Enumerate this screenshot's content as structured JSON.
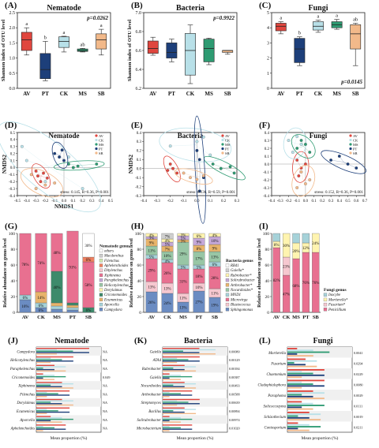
{
  "colors": {
    "AV": "#e0463e",
    "PT": "#1d3f7a",
    "CK": "#b8e0e8",
    "MS": "#2e9b72",
    "SB": "#f2b98a",
    "grid": "#bbbbbb"
  },
  "chart_data": [
    {
      "id": "A",
      "type": "box",
      "panel_label": "(A)",
      "title": "Nematode",
      "ylabel": "Shannon index of OTU level",
      "ylim": [
        0,
        2.5
      ],
      "yticks": [
        "0.0",
        "0.5",
        "1.0",
        "1.5",
        "2.0",
        "2.5"
      ],
      "categories": [
        "AV",
        "PT",
        "CK",
        "MS",
        "SB"
      ],
      "pvalue": "p=0.0262",
      "letters": [
        "a",
        "b",
        "a",
        "ab",
        "a"
      ],
      "boxes": [
        {
          "min": 1.1,
          "q1": 1.25,
          "med": 1.6,
          "q3": 1.85,
          "max": 2.0
        },
        {
          "min": 0.25,
          "q1": 0.32,
          "med": 0.62,
          "q3": 1.15,
          "max": 1.55
        },
        {
          "min": 1.2,
          "q1": 1.35,
          "med": 1.55,
          "q3": 1.7,
          "max": 1.72
        },
        {
          "min": 1.2,
          "q1": 1.22,
          "med": 1.25,
          "q3": 1.3,
          "max": 1.32
        },
        {
          "min": 1.1,
          "q1": 1.3,
          "med": 1.6,
          "q3": 1.8,
          "max": 1.95
        }
      ]
    },
    {
      "id": "B",
      "type": "box",
      "panel_label": "(B)",
      "title": "Bacteria",
      "ylabel": "Shannon index of OTU level",
      "ylim": [
        6.2,
        7.0
      ],
      "yticks": [
        "6.2",
        "6.4",
        "6.6",
        "6.8",
        "7.0"
      ],
      "categories": [
        "AV",
        "PT",
        "CK",
        "MS",
        "SB"
      ],
      "pvalue": "p=0.9922",
      "letters": [],
      "boxes": [
        {
          "min": 6.55,
          "q1": 6.57,
          "med": 6.62,
          "q3": 6.7,
          "max": 6.74
        },
        {
          "min": 6.48,
          "q1": 6.52,
          "med": 6.58,
          "q3": 6.68,
          "max": 6.72
        },
        {
          "min": 6.25,
          "q1": 6.34,
          "med": 6.6,
          "q3": 6.78,
          "max": 6.87
        },
        {
          "min": 6.45,
          "q1": 6.48,
          "med": 6.62,
          "q3": 6.72,
          "max": 6.73
        },
        {
          "min": 6.56,
          "q1": 6.58,
          "med": 6.6,
          "q3": 6.6,
          "max": 6.6
        }
      ]
    },
    {
      "id": "C",
      "type": "box",
      "panel_label": "(C)",
      "title": "Fungi",
      "ylabel": "",
      "ylim": [
        0,
        5
      ],
      "yticks": [
        "0",
        "1",
        "2",
        "3",
        "4",
        "5"
      ],
      "categories": [
        "AV",
        "PT",
        "CK",
        "MS",
        "SB"
      ],
      "pvalue": "p=0.0145",
      "letters": [
        "a",
        "b",
        "a",
        "a",
        "ab"
      ],
      "boxes": [
        {
          "min": 3.6,
          "q1": 3.8,
          "med": 4.1,
          "q3": 4.3,
          "max": 4.4
        },
        {
          "min": 1.5,
          "q1": 1.7,
          "med": 2.6,
          "q3": 3.3,
          "max": 3.4
        },
        {
          "min": 3.7,
          "q1": 3.85,
          "med": 4.1,
          "q3": 4.4,
          "max": 4.5
        },
        {
          "min": 3.9,
          "q1": 4.0,
          "med": 4.2,
          "q3": 4.4,
          "max": 4.55
        },
        {
          "min": 1.5,
          "q1": 2.6,
          "med": 3.6,
          "q3": 4.2,
          "max": 4.3
        }
      ]
    },
    {
      "id": "D",
      "type": "scatter",
      "panel_label": "(D)",
      "title": "Nematode",
      "xlabel": "NMDS1",
      "ylabel": "NMDS2",
      "xlim": [
        -0.5,
        0.5
      ],
      "ylim": [
        -0.4,
        0.5
      ],
      "xticks": [
        "-0.5",
        "-0.4",
        "-0.3",
        "-0.2",
        "-0.1",
        "0.0",
        "0.1",
        "0.2",
        "0.3",
        "0.4",
        "0.5"
      ],
      "yticks": [
        "-0.4",
        "-0.3",
        "-0.2",
        "-0.1",
        "0.0",
        "0.1",
        "0.2",
        "0.3",
        "0.4",
        "0.5"
      ],
      "stress": "stress: 0.145, R=0.36, P=0.001",
      "legend": [
        "AV",
        "CK",
        "MS",
        "PT",
        "SB"
      ],
      "points": {
        "AV": [
          [
            -0.3,
            -0.05
          ],
          [
            -0.28,
            -0.12
          ],
          [
            -0.22,
            -0.08
          ],
          [
            -0.18,
            -0.15
          ],
          [
            -0.25,
            -0.2
          ]
        ],
        "CK": [
          [
            -0.45,
            0.3
          ],
          [
            -0.4,
            0.1
          ],
          [
            -0.2,
            -0.2
          ],
          [
            0.2,
            -0.3
          ],
          [
            0.05,
            0.15
          ]
        ],
        "MS": [
          [
            0.05,
            0.05
          ],
          [
            0.1,
            0.0
          ],
          [
            0.15,
            0.02
          ],
          [
            0.35,
            0.05
          ]
        ],
        "PT": [
          [
            -0.1,
            0.2
          ],
          [
            -0.05,
            0.15
          ],
          [
            0.0,
            0.1
          ],
          [
            -0.02,
            0.25
          ]
        ],
        "SB": [
          [
            -0.35,
            -0.1
          ],
          [
            -0.2,
            -0.25
          ],
          [
            -0.1,
            -0.22
          ],
          [
            -0.3,
            -0.3
          ]
        ]
      }
    },
    {
      "id": "E",
      "type": "scatter",
      "panel_label": "(E)",
      "title": "Bacteria",
      "xlabel": "",
      "ylabel": "NMDS2",
      "xlim": [
        -0.4,
        0.3
      ],
      "ylim": [
        -0.3,
        0.4
      ],
      "xticks": [
        "-0.4",
        "-0.3",
        "-0.2",
        "-0.1",
        "0.0",
        "0.1",
        "0.2",
        "0.3"
      ],
      "yticks": [
        "-0.3",
        "-0.2",
        "-0.1",
        "0.0",
        "0.1",
        "0.2",
        "0.3",
        "0.4"
      ],
      "stress": "stress: 0.136, R=0.59, P=0.001",
      "legend": [
        "AV",
        "CK",
        "MS",
        "PT",
        "SB"
      ],
      "points": {
        "AV": [
          [
            -0.22,
            -0.02
          ],
          [
            -0.2,
            0.05
          ],
          [
            -0.18,
            0.0
          ],
          [
            -0.15,
            -0.05
          ]
        ],
        "CK": [
          [
            -0.2,
            0.25
          ],
          [
            0.0,
            0.3
          ],
          [
            0.05,
            0.35
          ],
          [
            0.1,
            0.15
          ]
        ],
        "MS": [
          [
            0.12,
            0.05
          ],
          [
            0.18,
            0.0
          ],
          [
            0.25,
            0.02
          ],
          [
            0.28,
            -0.05
          ]
        ],
        "PT": [
          [
            0.0,
            0.2
          ],
          [
            0.02,
            0.1
          ],
          [
            0.05,
            -0.1
          ],
          [
            0.02,
            -0.25
          ]
        ],
        "SB": [
          [
            -0.1,
            -0.05
          ],
          [
            -0.05,
            -0.1
          ],
          [
            0.0,
            -0.12
          ],
          [
            0.05,
            -0.08
          ]
        ]
      }
    },
    {
      "id": "F",
      "type": "scatter",
      "panel_label": "(F)",
      "title": "Fungi",
      "xlabel": "",
      "ylabel": "",
      "xlim": [
        -0.4,
        0.7
      ],
      "ylim": [
        -0.4,
        0.4
      ],
      "xticks": [
        "-0.4",
        "-0.3",
        "-0.2",
        "-0.1",
        "0.0",
        "0.1",
        "0.2",
        "0.3",
        "0.4",
        "0.5",
        "0.6",
        "0.7"
      ],
      "yticks": [
        "-0.4",
        "-0.3",
        "-0.2",
        "-0.1",
        "0.0",
        "0.1",
        "0.2",
        "0.3",
        "0.4"
      ],
      "stress": "stress: 0.152, R=0.36, P=0.001",
      "legend": [
        "AV",
        "CK",
        "MS",
        "PT",
        "SB"
      ],
      "points": {
        "AV": [
          [
            -0.1,
            0.05
          ],
          [
            -0.05,
            -0.05
          ],
          [
            0.0,
            0.0
          ],
          [
            -0.08,
            -0.15
          ]
        ],
        "CK": [
          [
            -0.2,
            0.3
          ],
          [
            -0.1,
            0.35
          ],
          [
            -0.15,
            0.15
          ],
          [
            -0.05,
            0.25
          ]
        ],
        "MS": [
          [
            -0.1,
            0.2
          ],
          [
            -0.05,
            0.3
          ],
          [
            0.0,
            0.25
          ],
          [
            0.05,
            0.15
          ]
        ],
        "PT": [
          [
            0.3,
            0.05
          ],
          [
            0.4,
            0.1
          ],
          [
            0.5,
            0.0
          ],
          [
            0.6,
            -0.05
          ]
        ],
        "SB": [
          [
            -0.05,
            -0.1
          ],
          [
            0.0,
            -0.25
          ],
          [
            -0.1,
            -0.3
          ],
          [
            0.05,
            -0.2
          ]
        ]
      }
    },
    {
      "id": "G",
      "type": "stacked_bar",
      "panel_label": "(G)",
      "ylabel": "Relative abundance on genus level",
      "categories": [
        "AV",
        "CK",
        "MS",
        "PT",
        "SB"
      ],
      "legend_title": "Nematode genus",
      "series": [
        {
          "name": "Campydora",
          "color": "#6b8cc2",
          "values": [
            16,
            6,
            4,
            3,
            0
          ]
        },
        {
          "name": "Aporcella",
          "color": "#a6d2d9",
          "values": [
            6,
            6,
            4,
            3,
            0
          ]
        },
        {
          "name": "Ecumenicus",
          "color": "#e8b46b",
          "values": [
            0,
            14,
            4,
            3,
            0
          ]
        },
        {
          "name": "Criconemoides",
          "color": "#3d8a6b",
          "values": [
            0,
            0,
            40,
            3,
            6
          ]
        },
        {
          "name": "Dorylaimus",
          "color": "#fff4b0",
          "values": [
            0,
            0,
            0,
            0,
            0
          ]
        },
        {
          "name": "Helicotylenchus",
          "color": "#98c6a5",
          "values": [
            0,
            0,
            0,
            0,
            0
          ]
        },
        {
          "name": "Paraphelenchus",
          "color": "#c5a8d8",
          "values": [
            0,
            0,
            0,
            0,
            0
          ]
        },
        {
          "name": "Xiphinema",
          "color": "#e87090",
          "values": [
            78,
            74,
            48,
            91,
            58
          ]
        },
        {
          "name": "Ditylenchus",
          "color": "#f6c8d0",
          "values": [
            0,
            0,
            0,
            0,
            0
          ]
        },
        {
          "name": "Aphelenchoides",
          "color": "#f08060",
          "values": [
            0,
            0,
            0,
            0,
            6
          ]
        },
        {
          "name": "Filenchus",
          "color": "#d0e8b0",
          "values": [
            0,
            0,
            0,
            0,
            0
          ]
        },
        {
          "name": "Macdonchus",
          "color": "#cfcfcf",
          "values": [
            0,
            0,
            0,
            0,
            0
          ]
        },
        {
          "name": "others",
          "color": "#ffffff",
          "values": [
            0,
            0,
            0,
            0,
            30
          ]
        }
      ],
      "bar_labels": [
        [
          "16%",
          "6%",
          "",
          "",
          "",
          "",
          "",
          "78%"
        ],
        [
          "6%",
          "6%",
          "14%",
          "",
          "",
          "",
          "",
          "74%"
        ],
        [
          "",
          "",
          "",
          "40%",
          "",
          "",
          "",
          "48%"
        ],
        [
          "",
          "",
          "",
          "",
          "",
          "",
          "",
          "91%"
        ],
        [
          "",
          "",
          "",
          "6%",
          "",
          "",
          "",
          "58%",
          "",
          "6%",
          "",
          "",
          "30%"
        ]
      ]
    },
    {
      "id": "H",
      "type": "stacked_bar",
      "panel_label": "(H)",
      "ylabel": "Relative abundance on genus level",
      "categories": [
        "AV",
        "CK",
        "MS",
        "PT",
        "SB"
      ],
      "legend_title": "Bacteria genus",
      "series": [
        {
          "name": "Sphingomonas",
          "color": "#6b8cc2",
          "values": [
            26,
            24,
            13,
            27,
            19
          ]
        },
        {
          "name": "Blastococcus",
          "color": "#f6c8d0",
          "values": [
            13,
            13,
            11,
            10,
            11
          ]
        },
        {
          "name": "Microvirga",
          "color": "#e87090",
          "values": [
            29,
            26,
            31,
            18,
            28
          ]
        },
        {
          "name": "MND1",
          "color": "#a6d2d9",
          "values": [
            5,
            4,
            5,
            5,
            6
          ]
        },
        {
          "name": "Nocardioides*",
          "color": "#98c6a5",
          "values": [
            11,
            10,
            29,
            17,
            13
          ]
        },
        {
          "name": "Arthrobacter*",
          "color": "#e8b46b",
          "values": [
            9,
            7,
            3,
            8,
            9
          ]
        },
        {
          "name": "Solirubrobacter",
          "color": "#c5a8d8",
          "values": [
            3,
            5,
            5,
            9,
            10
          ]
        },
        {
          "name": "Rubrobacter*",
          "color": "#fff4b0",
          "values": [
            4,
            4,
            3,
            6,
            4
          ]
        },
        {
          "name": "Gaiella*",
          "color": "#cfcfcf",
          "values": [
            0,
            7,
            0,
            0,
            0
          ]
        },
        {
          "name": "RB41",
          "color": "#ffffff",
          "values": [
            0,
            0,
            0,
            0,
            0
          ]
        }
      ],
      "bar_labels": [
        [
          "26%",
          "13%",
          "29%",
          "5%",
          "11%",
          "9%",
          "3%",
          "4%"
        ],
        [
          "24%",
          "13%",
          "26%",
          "4%",
          "10%",
          "7%",
          "5%",
          "4%",
          "7%"
        ],
        [
          "13%",
          "11%",
          "31%",
          "5%",
          "29%",
          "3%",
          "5%",
          "3%"
        ],
        [
          "27%",
          "10%",
          "18%",
          "5%",
          "17%",
          "8%",
          "9%",
          "6%"
        ],
        [
          "19%",
          "11%",
          "28%",
          "6%",
          "13%",
          "9%",
          "10%",
          "4%"
        ]
      ]
    },
    {
      "id": "I",
      "type": "stacked_bar",
      "panel_label": "(I)",
      "ylabel": "Relative abundance on genus level",
      "categories": [
        "AV",
        "CK",
        "MS",
        "PT",
        "SB"
      ],
      "legend_title": "Fungi genus",
      "series": [
        {
          "name": "Penicillium",
          "color": "#e87090",
          "values": [
            82,
            47,
            68,
            76,
            76
          ]
        },
        {
          "name": "Fusarium*",
          "color": "#f6c8d0",
          "values": [
            0,
            23,
            0,
            0,
            0
          ]
        },
        {
          "name": "Mortierella*",
          "color": "#fff4b0",
          "values": [
            8,
            30,
            20,
            12,
            24
          ]
        },
        {
          "name": "Inocybe",
          "color": "#a6d2d9",
          "values": [
            10,
            0,
            12,
            12,
            0
          ]
        }
      ],
      "bar_labels": [
        [
          "82%",
          "",
          "8%"
        ],
        [
          "47%",
          "23%",
          "30%"
        ],
        [
          "68%",
          "",
          "20%"
        ],
        [
          "76%",
          "",
          "12%"
        ],
        [
          "76%",
          "",
          "24%"
        ]
      ]
    },
    {
      "id": "J",
      "type": "hbar",
      "panel_label": "(J)",
      "title": "Nematode",
      "xlabel": "Mean proportion (%)",
      "genera": [
        "Campydora",
        "Helicotylenchus",
        "Paraphelenchus",
        "Criconemoides",
        "Xiphinema",
        "Filenchus",
        "Dorylaimus",
        "Ecumenicus",
        "Aporcella",
        "Aphelenchoides"
      ],
      "right_labels": [
        "NA",
        "NA",
        "NA",
        "0.049",
        "NA",
        "NA",
        "NA",
        "NA",
        "NA",
        "NA"
      ]
    },
    {
      "id": "K",
      "type": "hbar",
      "panel_label": "(K)",
      "title": "Bacteria",
      "xlabel": "Mean proportion (%)",
      "genera": [
        "Gaiella",
        "ATA4",
        "Rubrobacter",
        "Gaiella",
        "Nocardioides",
        "Arthrobacter",
        "Streptomyces",
        "Bacillus",
        "Solirubrobacter",
        "Microbacterium"
      ],
      "right_labels": [
        "0.00080",
        "0.00129",
        "0.00184",
        "0.00387",
        "0.00493",
        "0.00588",
        "0.00639",
        "0.00894",
        "0.00974",
        "0.01020"
      ]
    },
    {
      "id": "L",
      "type": "hbar",
      "panel_label": "(L)",
      "title": "Fungi",
      "xlabel": "Mean proportion (%)",
      "genera": [
        "Mortierella",
        "Fusarium",
        "Chaetomium",
        "Cladophialophora",
        "Paraphoma",
        "Solicoccozyma",
        "Schizothecium",
        "Coniosporium"
      ],
      "right_labels": [
        "0.0041",
        "0.0294",
        "0.0229",
        "0.0080",
        "0.0029",
        "0.0111",
        "0.0019",
        "0.0211"
      ]
    }
  ]
}
